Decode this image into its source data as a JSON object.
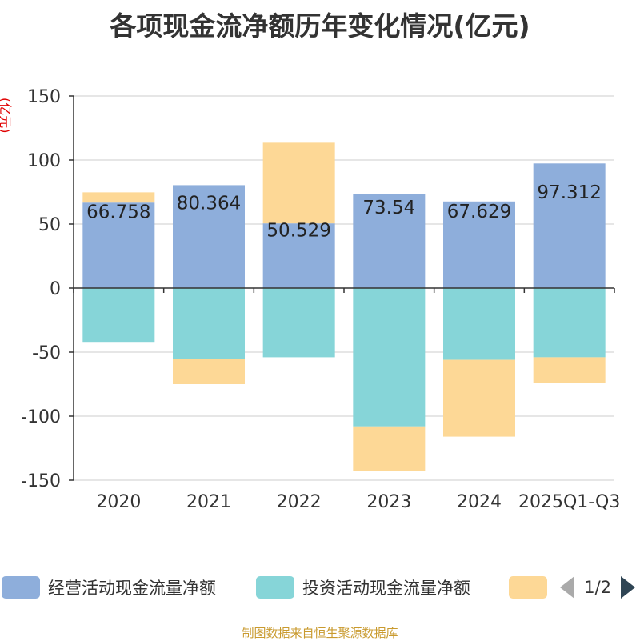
{
  "title": "各项现金流净额历年变化情况(亿元)",
  "unit_label": "(亿元)",
  "footer": "制图数据来自恒生聚源数据库",
  "legend": {
    "items": [
      {
        "label": "经营活动现金流量净额",
        "color": "#8eaedb"
      },
      {
        "label": "投资活动现金流量净额",
        "color": "#86d5d8"
      },
      {
        "label": "",
        "color": "#fdd896"
      }
    ],
    "page": "1/2"
  },
  "chart_data": {
    "type": "bar",
    "stacked": true,
    "categories": [
      "2020",
      "2021",
      "2022",
      "2023",
      "2024",
      "2025Q1-Q3"
    ],
    "ylim": [
      -150,
      150
    ],
    "yticks": [
      150,
      100,
      50,
      0,
      -50,
      -100,
      -150
    ],
    "grid": true,
    "legend_position": "bottom",
    "series": [
      {
        "name": "经营活动现金流量净额",
        "color": "#8eaedb",
        "values": [
          66.758,
          80.364,
          50.529,
          73.54,
          67.629,
          97.312
        ],
        "labels": [
          "66.758",
          "80.364",
          "50.529",
          "73.54",
          "67.629",
          "97.312"
        ]
      },
      {
        "name": "投资活动现金流量净额",
        "color": "#86d5d8",
        "values": [
          -42,
          -55,
          -54,
          -108,
          -56,
          -54
        ]
      },
      {
        "color": "#fdd896",
        "values": [
          8,
          -20,
          63,
          -35,
          -60,
          -20
        ]
      }
    ]
  }
}
